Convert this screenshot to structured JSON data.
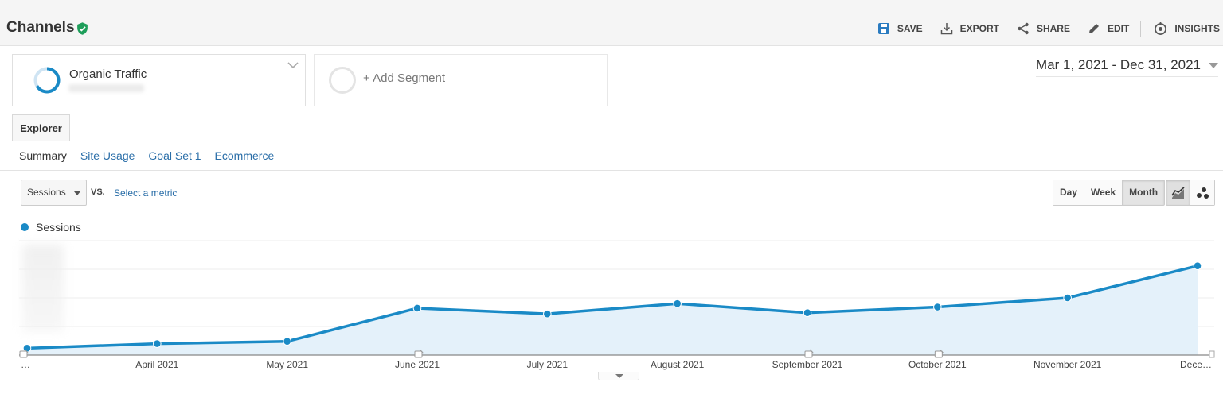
{
  "header": {
    "title": "Channels",
    "actions": [
      {
        "label": "SAVE",
        "icon": "save-icon"
      },
      {
        "label": "EXPORT",
        "icon": "export-icon"
      },
      {
        "label": "SHARE",
        "icon": "share-icon"
      },
      {
        "label": "EDIT",
        "icon": "edit-icon"
      },
      {
        "label": "INSIGHTS",
        "icon": "insights-icon"
      }
    ]
  },
  "segments": {
    "primary": "Organic Traffic",
    "add": "+ Add Segment"
  },
  "date_range": "Mar 1, 2021 - Dec 31, 2021",
  "tabs": {
    "explorer": "Explorer",
    "subtabs": [
      "Summary",
      "Site Usage",
      "Goal Set 1",
      "Ecommerce"
    ]
  },
  "controls": {
    "metric": "Sessions",
    "vs": "VS.",
    "select_metric": "Select a metric",
    "periods": [
      "Day",
      "Week",
      "Month"
    ],
    "active_period": "Month",
    "views": [
      "line-chart-icon",
      "motion-chart-icon"
    ]
  },
  "colors": {
    "accent": "#1a8ac6",
    "fill": "#e4f1fa",
    "link": "#2a6ea8",
    "verified": "#1e9e5a",
    "save_icon": "#2a7bc0"
  },
  "chart_data": {
    "type": "area",
    "series": [
      {
        "name": "Sessions",
        "values": [
          6,
          10,
          12,
          41,
          36,
          45,
          37,
          42,
          50,
          78
        ]
      }
    ],
    "categories": [
      "…",
      "April 2021",
      "May 2021",
      "June 2021",
      "July 2021",
      "August 2021",
      "September 2021",
      "October 2021",
      "November 2021",
      "Dece…"
    ],
    "ylim": [
      0,
      100
    ],
    "grid": true,
    "annotations_at": [
      "…",
      "June 2021",
      "September 2021",
      "October 2021"
    ]
  }
}
